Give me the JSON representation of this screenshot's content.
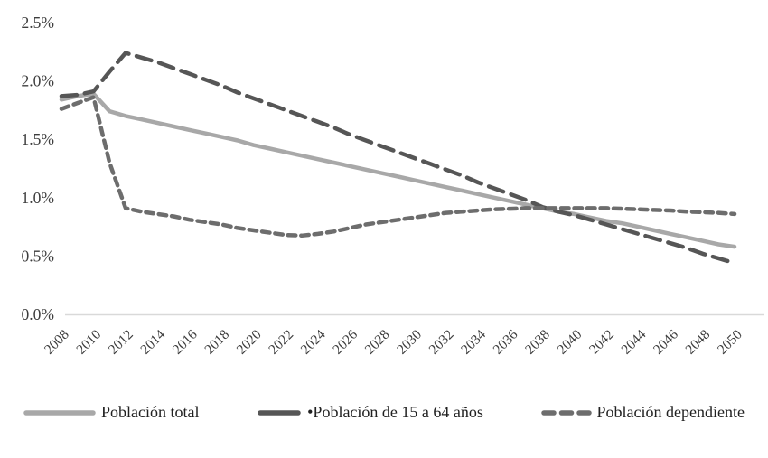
{
  "chart_data": {
    "type": "line",
    "title": "",
    "xlabel": "",
    "ylabel": "",
    "ylim": [
      0.0,
      2.5
    ],
    "y_unit": "percent",
    "grid": "off",
    "axis_line_color": "#d9d9d9",
    "axis_text_color": "#3d3d3d",
    "legend_position": "bottom",
    "y_tick_labels": [
      "0.0%",
      "0.5%",
      "1.0%",
      "1.5%",
      "2.0%",
      "2.5%"
    ],
    "x_tick_labels": [
      "2008",
      "2010",
      "2012",
      "2014",
      "2016",
      "2018",
      "2020",
      "2022",
      "2024",
      "2026",
      "2028",
      "2030",
      "2032",
      "2034",
      "2036",
      "2038",
      "2040",
      "2042",
      "2044",
      "2046",
      "2048",
      "2050"
    ],
    "x": [
      2008,
      2009,
      2010,
      2011,
      2012,
      2013,
      2014,
      2015,
      2016,
      2017,
      2018,
      2019,
      2020,
      2021,
      2022,
      2023,
      2024,
      2025,
      2026,
      2027,
      2028,
      2029,
      2030,
      2031,
      2032,
      2033,
      2034,
      2035,
      2036,
      2037,
      2038,
      2039,
      2040,
      2041,
      2042,
      2043,
      2044,
      2045,
      2046,
      2047,
      2048,
      2049,
      2050
    ],
    "series": [
      {
        "name": "Población total",
        "style": "solid",
        "color": "#a8a8a8",
        "values": [
          1.84,
          1.87,
          1.89,
          1.74,
          1.7,
          1.67,
          1.64,
          1.61,
          1.58,
          1.55,
          1.52,
          1.49,
          1.45,
          1.42,
          1.39,
          1.36,
          1.33,
          1.3,
          1.27,
          1.24,
          1.21,
          1.18,
          1.15,
          1.12,
          1.09,
          1.06,
          1.03,
          1.0,
          0.97,
          0.94,
          0.91,
          0.88,
          0.86,
          0.83,
          0.8,
          0.78,
          0.75,
          0.72,
          0.69,
          0.66,
          0.63,
          0.6,
          0.58
        ]
      },
      {
        "name": "Población de 15 a 64 años",
        "style": "long-dash",
        "color": "#565656",
        "values": [
          1.87,
          1.88,
          1.91,
          2.08,
          2.24,
          2.2,
          2.16,
          2.11,
          2.06,
          2.01,
          1.96,
          1.9,
          1.85,
          1.8,
          1.75,
          1.7,
          1.65,
          1.6,
          1.54,
          1.49,
          1.44,
          1.39,
          1.34,
          1.29,
          1.24,
          1.19,
          1.13,
          1.08,
          1.03,
          0.98,
          0.92,
          0.88,
          0.85,
          0.81,
          0.77,
          0.73,
          0.69,
          0.65,
          0.61,
          0.57,
          0.52,
          0.48,
          0.44
        ]
      },
      {
        "name": "Población dependiente",
        "style": "short-dash",
        "color": "#6d6d6d",
        "values": [
          1.76,
          1.81,
          1.86,
          1.3,
          0.91,
          0.88,
          0.86,
          0.84,
          0.81,
          0.79,
          0.77,
          0.74,
          0.72,
          0.7,
          0.68,
          0.675,
          0.69,
          0.71,
          0.74,
          0.77,
          0.79,
          0.81,
          0.83,
          0.85,
          0.87,
          0.88,
          0.89,
          0.9,
          0.905,
          0.91,
          0.91,
          0.91,
          0.91,
          0.91,
          0.91,
          0.905,
          0.9,
          0.895,
          0.89,
          0.88,
          0.875,
          0.87,
          0.86
        ]
      }
    ],
    "legend": [
      {
        "label": "Población total",
        "marker": "solid"
      },
      {
        "label": "•Población de 15 a 64 años",
        "marker": "long-dash"
      },
      {
        "label": "Población dependiente",
        "marker": "short-dash"
      }
    ]
  }
}
